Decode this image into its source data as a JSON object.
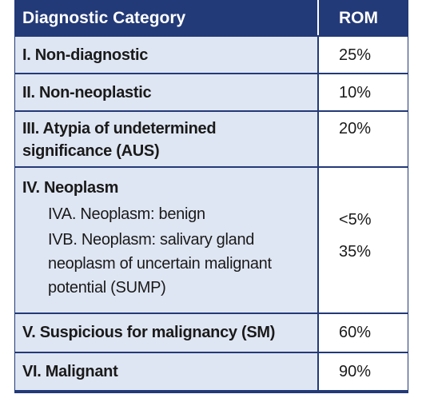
{
  "table": {
    "header": {
      "category": "Diagnostic Category",
      "rom": "ROM"
    },
    "rows": [
      {
        "category": "I. Non-diagnostic",
        "rom": "25%"
      },
      {
        "category": "II. Non-neoplastic",
        "rom": "10%"
      },
      {
        "category_line1": "III. Atypia of undetermined",
        "category_line2": "significance (AUS)",
        "rom": "20%"
      },
      {
        "category": "IV. Neoplasm",
        "subcategories": [
          {
            "label": "IVA. Neoplasm: benign",
            "rom": "<5%"
          },
          {
            "label_line1": "IVB. Neoplasm: salivary gland",
            "label_line2": "neoplasm of uncertain malignant",
            "label_line3": "potential (SUMP)",
            "rom": "35%"
          }
        ]
      },
      {
        "category": "V. Suspicious for malignancy (SM)",
        "rom": "60%"
      },
      {
        "category": "VI. Malignant",
        "rom": "90%"
      }
    ]
  },
  "colors": {
    "header_bg": "#233a78",
    "category_bg": "#dfe6f3",
    "rom_bg": "#ffffff",
    "border": "#233a78"
  }
}
